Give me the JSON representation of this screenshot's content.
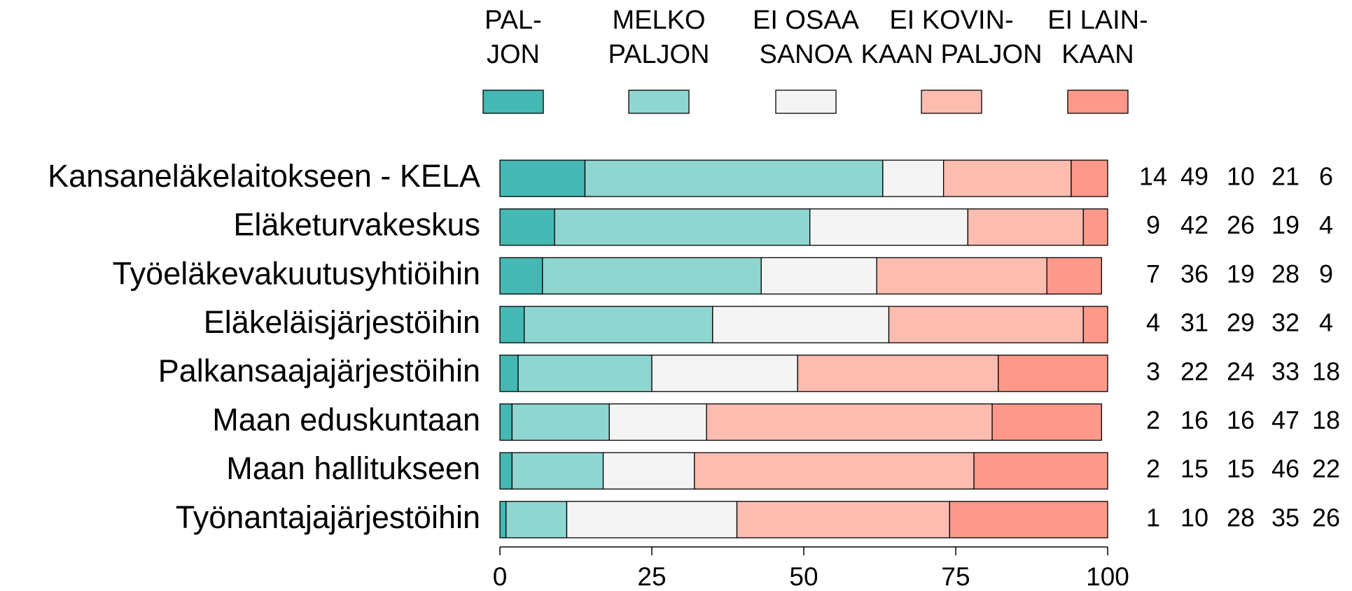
{
  "chart_data": {
    "type": "stacked_barh",
    "categories": [
      "Kansaneläkelaitokseen - KELA",
      "Eläketurvakeskus",
      "Työeläkevakuutusyhtiöihin",
      "Eläkeläisjärjestöihin",
      "Palkansaajajärjestöihin",
      "Maan eduskuntaan",
      "Maan hallitukseen",
      "Työnantajajärjestöihin"
    ],
    "series": [
      {
        "name": [
          "PAL-",
          "JON"
        ],
        "color": "#45b8b4",
        "values": [
          14,
          9,
          7,
          4,
          3,
          2,
          2,
          1
        ]
      },
      {
        "name": [
          "MELKO",
          "PALJON"
        ],
        "color": "#8fd6d1",
        "values": [
          49,
          42,
          36,
          31,
          22,
          16,
          15,
          10
        ]
      },
      {
        "name": [
          "EI OSAA",
          "SANOA"
        ],
        "color": "#f4f4f4",
        "values": [
          10,
          26,
          19,
          29,
          24,
          16,
          15,
          28
        ]
      },
      {
        "name": [
          "EI KOVIN-",
          "KAAN PALJON"
        ],
        "color": "#fdbcb0",
        "values": [
          21,
          19,
          28,
          32,
          33,
          47,
          46,
          35
        ]
      },
      {
        "name": [
          "EI LAIN-",
          "KAAN"
        ],
        "color": "#fc998a",
        "values": [
          6,
          4,
          9,
          4,
          18,
          18,
          22,
          26
        ]
      }
    ],
    "xlim": [
      0,
      100
    ],
    "xticks": [
      0,
      25,
      50,
      75,
      100
    ]
  }
}
